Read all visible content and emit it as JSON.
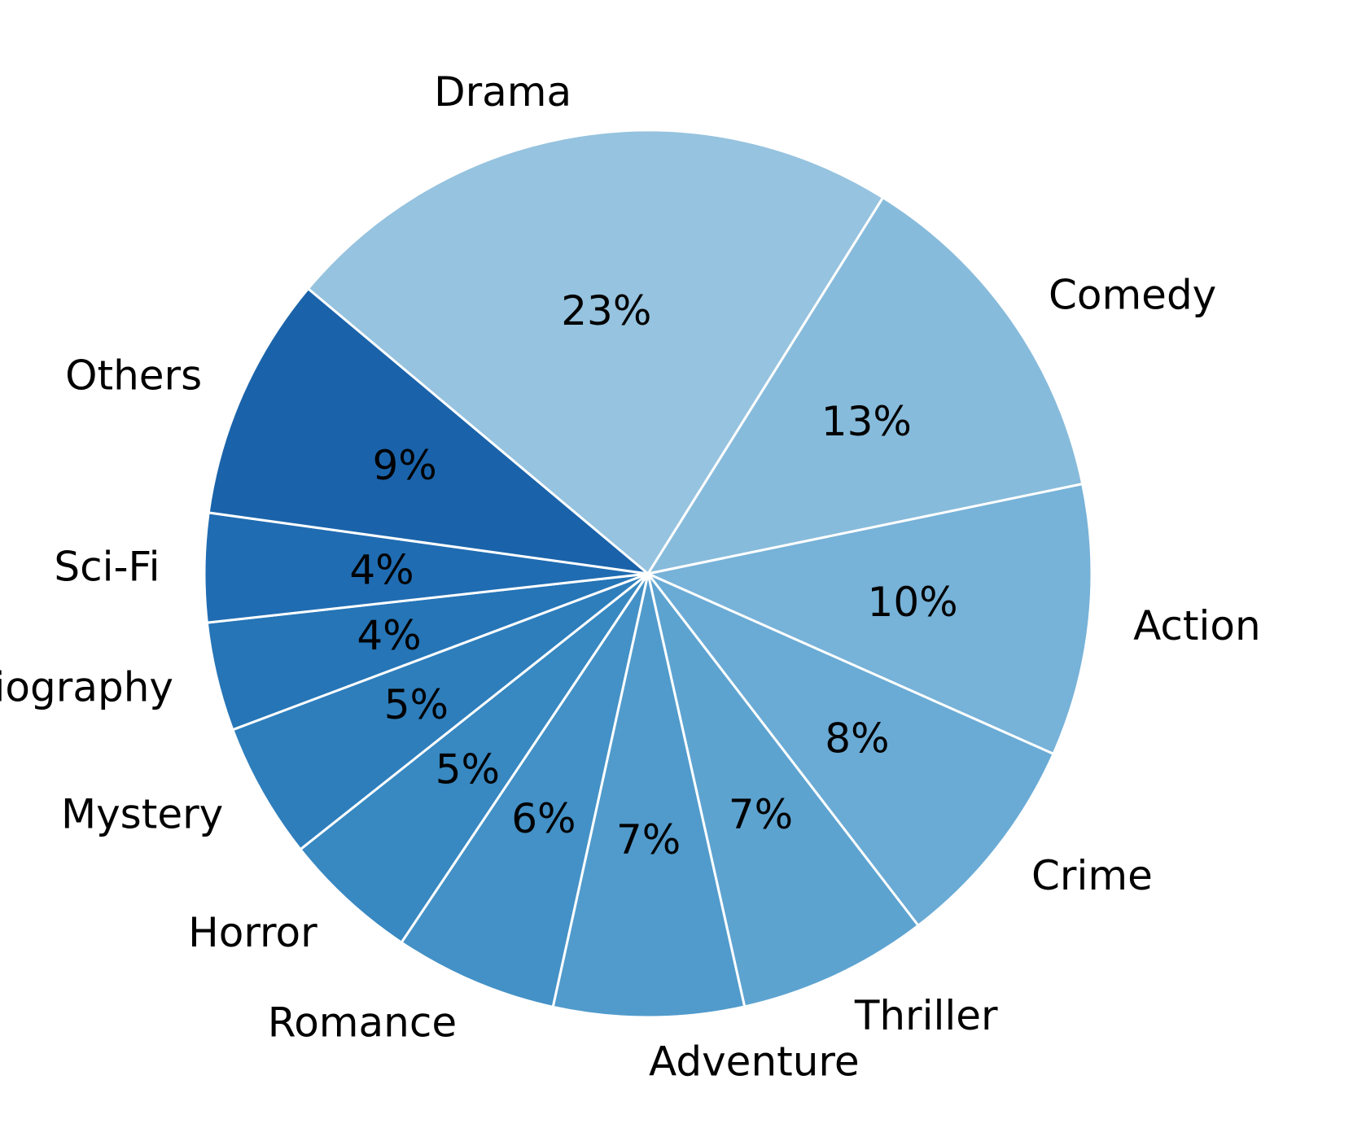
{
  "chart_data": {
    "type": "pie",
    "title": "",
    "start_angle_deg": 140,
    "direction": "clockwise",
    "slices": [
      {
        "label": "Drama",
        "value": 23,
        "pct_label": "23%",
        "color": "#96c3df"
      },
      {
        "label": "Comedy",
        "value": 13,
        "pct_label": "13%",
        "color": "#87bbdb"
      },
      {
        "label": "Action",
        "value": 10,
        "pct_label": "10%",
        "color": "#77b2d8"
      },
      {
        "label": "Crime",
        "value": 8,
        "pct_label": "8%",
        "color": "#6aabd5"
      },
      {
        "label": "Thriller",
        "value": 7,
        "pct_label": "7%",
        "color": "#5da3d0"
      },
      {
        "label": "Adventure",
        "value": 7,
        "pct_label": "7%",
        "color": "#519bcc"
      },
      {
        "label": "Romance",
        "value": 6,
        "pct_label": "6%",
        "color": "#4391c6"
      },
      {
        "label": "Horror",
        "value": 5,
        "pct_label": "5%",
        "color": "#3888c1"
      },
      {
        "label": "Mystery",
        "value": 5,
        "pct_label": "5%",
        "color": "#2e7ebc"
      },
      {
        "label": "Biography",
        "value": 4,
        "pct_label": "4%",
        "color": "#2575b7"
      },
      {
        "label": "Sci-Fi",
        "value": 4,
        "pct_label": "4%",
        "color": "#206cb2"
      },
      {
        "label": "Others",
        "value": 9,
        "pct_label": "9%",
        "color": "#1a63aa"
      }
    ]
  }
}
